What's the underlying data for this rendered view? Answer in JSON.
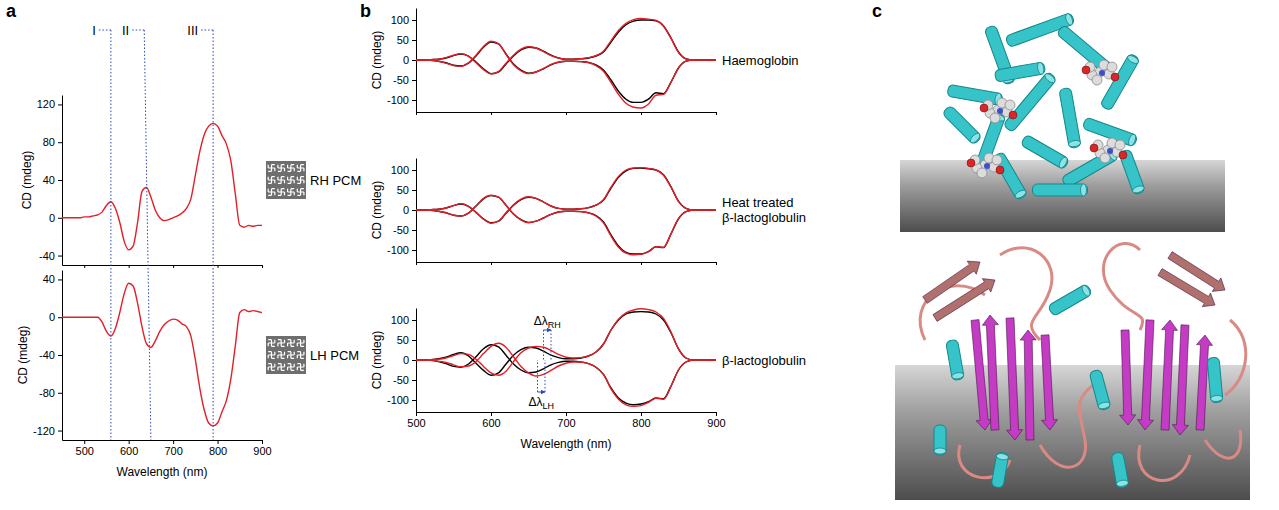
{
  "chart_data": [
    {
      "type": "line",
      "panel": "a",
      "title": "RH PCM",
      "ylabel": "CD (mdeg)",
      "x": [
        450,
        460,
        470,
        480,
        490,
        500,
        510,
        520,
        530,
        540,
        550,
        560,
        570,
        580,
        590,
        600,
        610,
        620,
        630,
        640,
        650,
        660,
        670,
        680,
        690,
        700,
        710,
        720,
        730,
        740,
        750,
        760,
        770,
        780,
        790,
        800,
        810,
        820,
        830,
        840,
        850,
        860,
        870,
        880,
        890,
        900
      ],
      "xlim": [
        450,
        900
      ],
      "xticks": [
        500,
        600,
        700,
        800,
        900
      ],
      "ylim": [
        -50,
        130
      ],
      "yticks": [
        -40,
        0,
        40,
        80,
        120
      ],
      "tick_labels": "y",
      "annotations": [
        {
          "text": "I",
          "x": [
            560,
            560
          ]
        },
        {
          "text": "II",
          "x": [
            635,
            650
          ]
        },
        {
          "text": "III",
          "x": [
            790,
            790
          ]
        }
      ],
      "series": [
        {
          "color": "#e41e26",
          "values": [
            0,
            0,
            0,
            0,
            0,
            1,
            1,
            2,
            3,
            6,
            13,
            17,
            10,
            -5,
            -25,
            -34,
            -30,
            -5,
            28,
            32,
            22,
            8,
            0,
            -3,
            -2,
            0,
            2,
            5,
            10,
            20,
            45,
            70,
            88,
            97,
            100,
            97,
            87,
            78,
            60,
            25,
            -8,
            -10,
            -8,
            -9,
            -8,
            -8
          ]
        }
      ]
    },
    {
      "type": "line",
      "title": "LH PCM",
      "ylabel": "CD (mdeg)",
      "xlabel": "Wavelength (nm)",
      "x": [
        450,
        460,
        470,
        480,
        490,
        500,
        510,
        520,
        530,
        540,
        550,
        560,
        570,
        580,
        590,
        600,
        610,
        620,
        630,
        640,
        650,
        660,
        670,
        680,
        690,
        700,
        710,
        720,
        730,
        740,
        750,
        760,
        770,
        780,
        790,
        800,
        810,
        820,
        830,
        840,
        850,
        860,
        870,
        880,
        890,
        900
      ],
      "xlim": [
        450,
        900
      ],
      "xticks": [
        500,
        600,
        700,
        800,
        900
      ],
      "ylim": [
        -130,
        50
      ],
      "yticks": [
        -120,
        -80,
        -40,
        0,
        40
      ],
      "series": [
        {
          "color": "#e41e26",
          "values": [
            0,
            0,
            0,
            0,
            0,
            0,
            0,
            0,
            0,
            -5,
            -15,
            -20,
            -12,
            5,
            25,
            36,
            33,
            15,
            -10,
            -28,
            -32,
            -25,
            -15,
            -8,
            -4,
            -2,
            -3,
            -7,
            -10,
            -20,
            -45,
            -75,
            -98,
            -112,
            -115,
            -112,
            -100,
            -88,
            -65,
            -30,
            5,
            8,
            6,
            7,
            6,
            5
          ]
        }
      ]
    },
    {
      "type": "line",
      "panel": "b",
      "title": "Haemoglobin",
      "ylabel": "CD (mdeg)",
      "x": [
        500,
        510,
        520,
        530,
        540,
        550,
        560,
        570,
        580,
        590,
        600,
        610,
        620,
        630,
        640,
        650,
        660,
        670,
        680,
        690,
        700,
        710,
        720,
        730,
        740,
        750,
        760,
        770,
        780,
        790,
        800,
        810,
        820,
        830,
        840,
        850,
        860,
        870,
        880,
        890,
        900
      ],
      "xlim": [
        500,
        900
      ],
      "xticks": [
        500,
        600,
        700,
        800,
        900
      ],
      "ylim": [
        -130,
        130
      ],
      "yticks": [
        -100,
        -50,
        0,
        50,
        100
      ],
      "tick_labels": "y",
      "series": [
        {
          "color": "#000000",
          "values": [
            0,
            0,
            1,
            2,
            5,
            11,
            15,
            10,
            -5,
            -22,
            -34,
            -30,
            -10,
            10,
            25,
            32,
            30,
            22,
            12,
            5,
            2,
            2,
            3,
            5,
            10,
            20,
            45,
            70,
            88,
            97,
            100,
            100,
            98,
            85,
            55,
            20,
            3,
            0,
            0,
            0,
            0
          ]
        },
        {
          "color": "#000000",
          "values": [
            0,
            0,
            -1,
            -3,
            -7,
            -13,
            -15,
            -8,
            10,
            32,
            45,
            40,
            15,
            -10,
            -25,
            -33,
            -30,
            -22,
            -12,
            -6,
            -3,
            -3,
            -4,
            -6,
            -12,
            -25,
            -50,
            -78,
            -98,
            -106,
            -106,
            -98,
            -82,
            -84,
            -55,
            -20,
            -3,
            0,
            0,
            0,
            0
          ]
        },
        {
          "color": "#e41e26",
          "values": [
            0,
            0,
            1,
            2,
            6,
            12,
            16,
            9,
            -7,
            -24,
            -35,
            -29,
            -8,
            12,
            27,
            33,
            30,
            21,
            11,
            5,
            2,
            2,
            3,
            6,
            11,
            22,
            48,
            74,
            92,
            101,
            104,
            102,
            99,
            85,
            54,
            19,
            3,
            0,
            0,
            0,
            0
          ]
        },
        {
          "color": "#e41e26",
          "values": [
            0,
            0,
            -1,
            -3,
            -8,
            -14,
            -16,
            -7,
            12,
            34,
            47,
            41,
            14,
            -12,
            -27,
            -34,
            -30,
            -21,
            -11,
            -5,
            -3,
            -3,
            -4,
            -7,
            -14,
            -28,
            -56,
            -86,
            -108,
            -118,
            -120,
            -110,
            -88,
            -86,
            -56,
            -20,
            -3,
            0,
            0,
            0,
            0
          ]
        }
      ]
    },
    {
      "type": "line",
      "title": "Heat treated β-lactoglobulin",
      "ylabel": "CD (mdeg)",
      "x": [
        500,
        510,
        520,
        530,
        540,
        550,
        560,
        570,
        580,
        590,
        600,
        610,
        620,
        630,
        640,
        650,
        660,
        670,
        680,
        690,
        700,
        710,
        720,
        730,
        740,
        750,
        760,
        770,
        780,
        790,
        800,
        810,
        820,
        830,
        840,
        850,
        860,
        870,
        880,
        890,
        900
      ],
      "xlim": [
        500,
        900
      ],
      "xticks": [
        500,
        600,
        700,
        800,
        900
      ],
      "ylim": [
        -130,
        130
      ],
      "yticks": [
        -100,
        -50,
        0,
        50,
        100
      ],
      "tick_labels": "y",
      "series": [
        {
          "color": "#000000",
          "values": [
            0,
            0,
            1,
            2,
            5,
            11,
            15,
            9,
            -6,
            -22,
            -32,
            -28,
            -8,
            12,
            26,
            32,
            29,
            20,
            10,
            4,
            2,
            2,
            3,
            6,
            12,
            25,
            55,
            82,
            98,
            104,
            105,
            103,
            100,
            88,
            58,
            22,
            4,
            0,
            0,
            0,
            0
          ]
        },
        {
          "color": "#000000",
          "values": [
            0,
            0,
            -1,
            -3,
            -7,
            -13,
            -15,
            -8,
            10,
            28,
            36,
            32,
            12,
            -10,
            -24,
            -31,
            -28,
            -20,
            -11,
            -5,
            -3,
            -3,
            -4,
            -7,
            -14,
            -30,
            -62,
            -90,
            -106,
            -110,
            -110,
            -104,
            -92,
            -94,
            -60,
            -22,
            -4,
            0,
            0,
            0,
            0
          ]
        },
        {
          "color": "#e41e26",
          "values": [
            0,
            0,
            1,
            2,
            5,
            11,
            16,
            9,
            -6,
            -23,
            -33,
            -28,
            -7,
            13,
            27,
            33,
            29,
            20,
            10,
            4,
            2,
            2,
            3,
            6,
            12,
            26,
            57,
            84,
            100,
            105,
            106,
            104,
            100,
            87,
            57,
            21,
            4,
            0,
            0,
            0,
            0
          ]
        },
        {
          "color": "#e41e26",
          "values": [
            0,
            0,
            -1,
            -3,
            -7,
            -13,
            -15,
            -8,
            10,
            29,
            37,
            32,
            12,
            -10,
            -25,
            -32,
            -28,
            -20,
            -11,
            -5,
            -3,
            -3,
            -4,
            -7,
            -15,
            -32,
            -65,
            -93,
            -108,
            -112,
            -111,
            -104,
            -92,
            -93,
            -59,
            -21,
            -4,
            0,
            0,
            0,
            0
          ]
        }
      ]
    },
    {
      "type": "line",
      "title": "β-lactoglobulin",
      "ylabel": "CD (mdeg)",
      "xlabel": "Wavelength (nm)",
      "x": [
        500,
        510,
        520,
        530,
        540,
        550,
        560,
        570,
        580,
        590,
        600,
        610,
        620,
        630,
        640,
        650,
        660,
        670,
        680,
        690,
        700,
        710,
        720,
        730,
        740,
        750,
        760,
        770,
        780,
        790,
        800,
        810,
        820,
        830,
        840,
        850,
        860,
        870,
        880,
        890,
        900
      ],
      "xlim": [
        500,
        900
      ],
      "xticks": [
        500,
        600,
        700,
        800,
        900
      ],
      "ylim": [
        -130,
        130
      ],
      "yticks": [
        -100,
        -50,
        0,
        50,
        100
      ],
      "annotations": [
        {
          "text": "Δλ",
          "subscript": "RH",
          "x": [
            670,
            680
          ],
          "y": 75
        },
        {
          "text": "Δλ",
          "subscript": "LH",
          "x": [
            662,
            672
          ],
          "y": -80
        }
      ],
      "series": [
        {
          "color": "#000000",
          "values": [
            0,
            0,
            1,
            3,
            7,
            14,
            18,
            10,
            -8,
            -26,
            -38,
            -32,
            -10,
            12,
            26,
            32,
            30,
            22,
            12,
            6,
            3,
            3,
            5,
            10,
            20,
            40,
            75,
            100,
            115,
            120,
            121,
            120,
            115,
            100,
            68,
            28,
            5,
            0,
            0,
            0,
            0
          ]
        },
        {
          "color": "#000000",
          "values": [
            0,
            0,
            -1,
            -4,
            -9,
            -16,
            -18,
            -10,
            8,
            28,
            38,
            33,
            12,
            -10,
            -25,
            -32,
            -30,
            -22,
            -12,
            -6,
            -3,
            -3,
            -5,
            -9,
            -18,
            -36,
            -70,
            -95,
            -108,
            -112,
            -110,
            -104,
            -95,
            -97,
            -65,
            -25,
            -5,
            0,
            0,
            0,
            0
          ]
        },
        {
          "color": "#e41e26",
          "values": [
            0,
            0,
            1,
            2,
            5,
            11,
            16,
            14,
            2,
            -16,
            -32,
            -38,
            -28,
            -4,
            18,
            30,
            34,
            32,
            24,
            14,
            7,
            5,
            6,
            10,
            20,
            40,
            75,
            102,
            118,
            125,
            128,
            126,
            120,
            104,
            70,
            28,
            5,
            0,
            0,
            0,
            0
          ]
        },
        {
          "color": "#e41e26",
          "values": [
            0,
            0,
            -1,
            -3,
            -6,
            -12,
            -17,
            -15,
            -4,
            16,
            34,
            42,
            32,
            8,
            -16,
            -32,
            -40,
            -36,
            -26,
            -15,
            -8,
            -5,
            -5,
            -9,
            -18,
            -36,
            -72,
            -98,
            -112,
            -116,
            -114,
            -106,
            -96,
            -98,
            -66,
            -25,
            -5,
            0,
            0,
            0,
            0
          ]
        }
      ]
    }
  ],
  "illustration": {
    "panel": "c"
  }
}
